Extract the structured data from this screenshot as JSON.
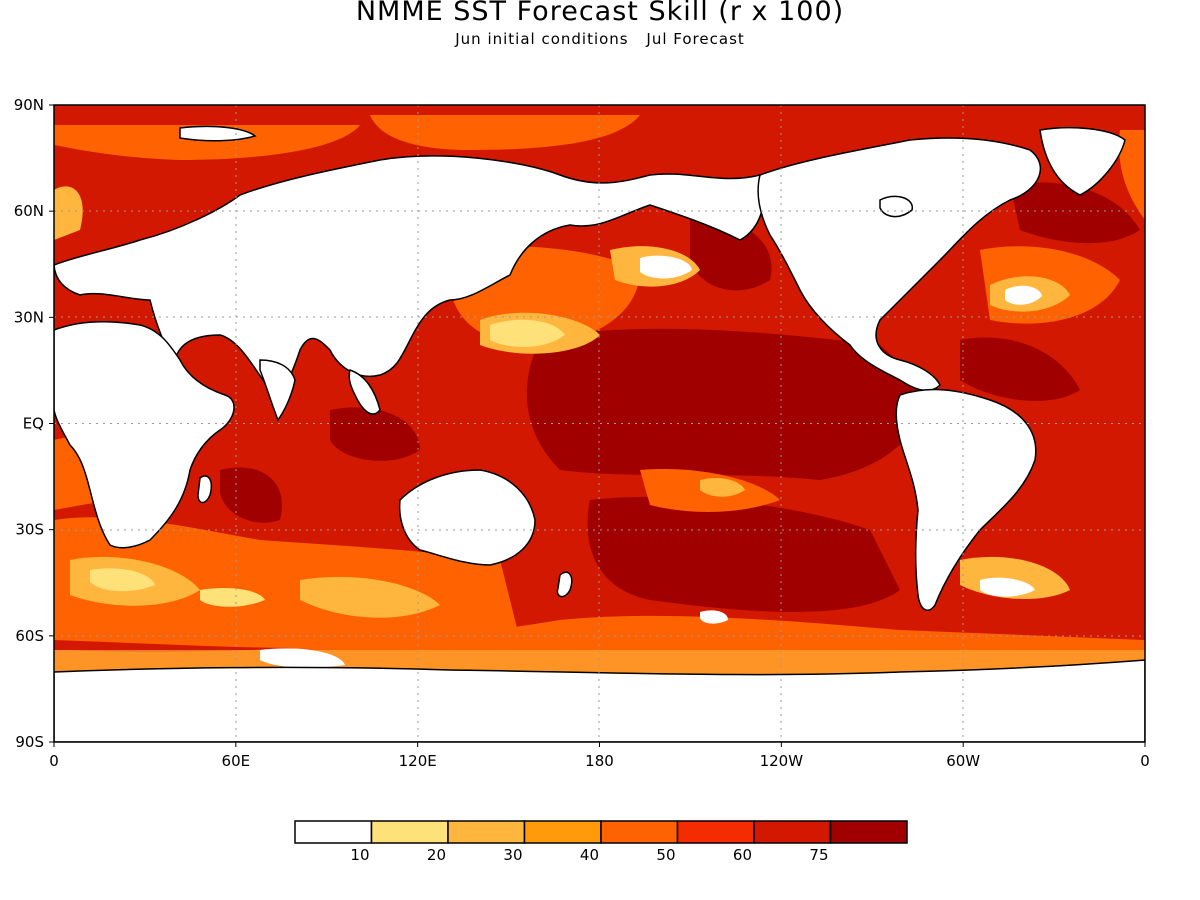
{
  "title": "NMME SST Forecast Skill (r x 100)",
  "subtitle": {
    "initial": "Jun initial conditions",
    "forecast": "Jul Forecast"
  },
  "map": {
    "lat_ticks": [
      "90N",
      "60N",
      "30N",
      "EQ",
      "30S",
      "60S",
      "90S"
    ],
    "lon_ticks": [
      "0",
      "60E",
      "120E",
      "180",
      "120W",
      "60W",
      "0"
    ],
    "lat_range": [
      -90,
      90
    ],
    "lon_range": [
      0,
      360
    ],
    "gridlines": "dotted"
  },
  "colorbar": {
    "colors": [
      "#ffffff",
      "#ffe17a",
      "#ffb63f",
      "#ff9a0a",
      "#ff6200",
      "#f52c00",
      "#d21800",
      "#a00000"
    ],
    "labels": [
      "10",
      "20",
      "30",
      "40",
      "50",
      "60",
      "75"
    ]
  }
}
